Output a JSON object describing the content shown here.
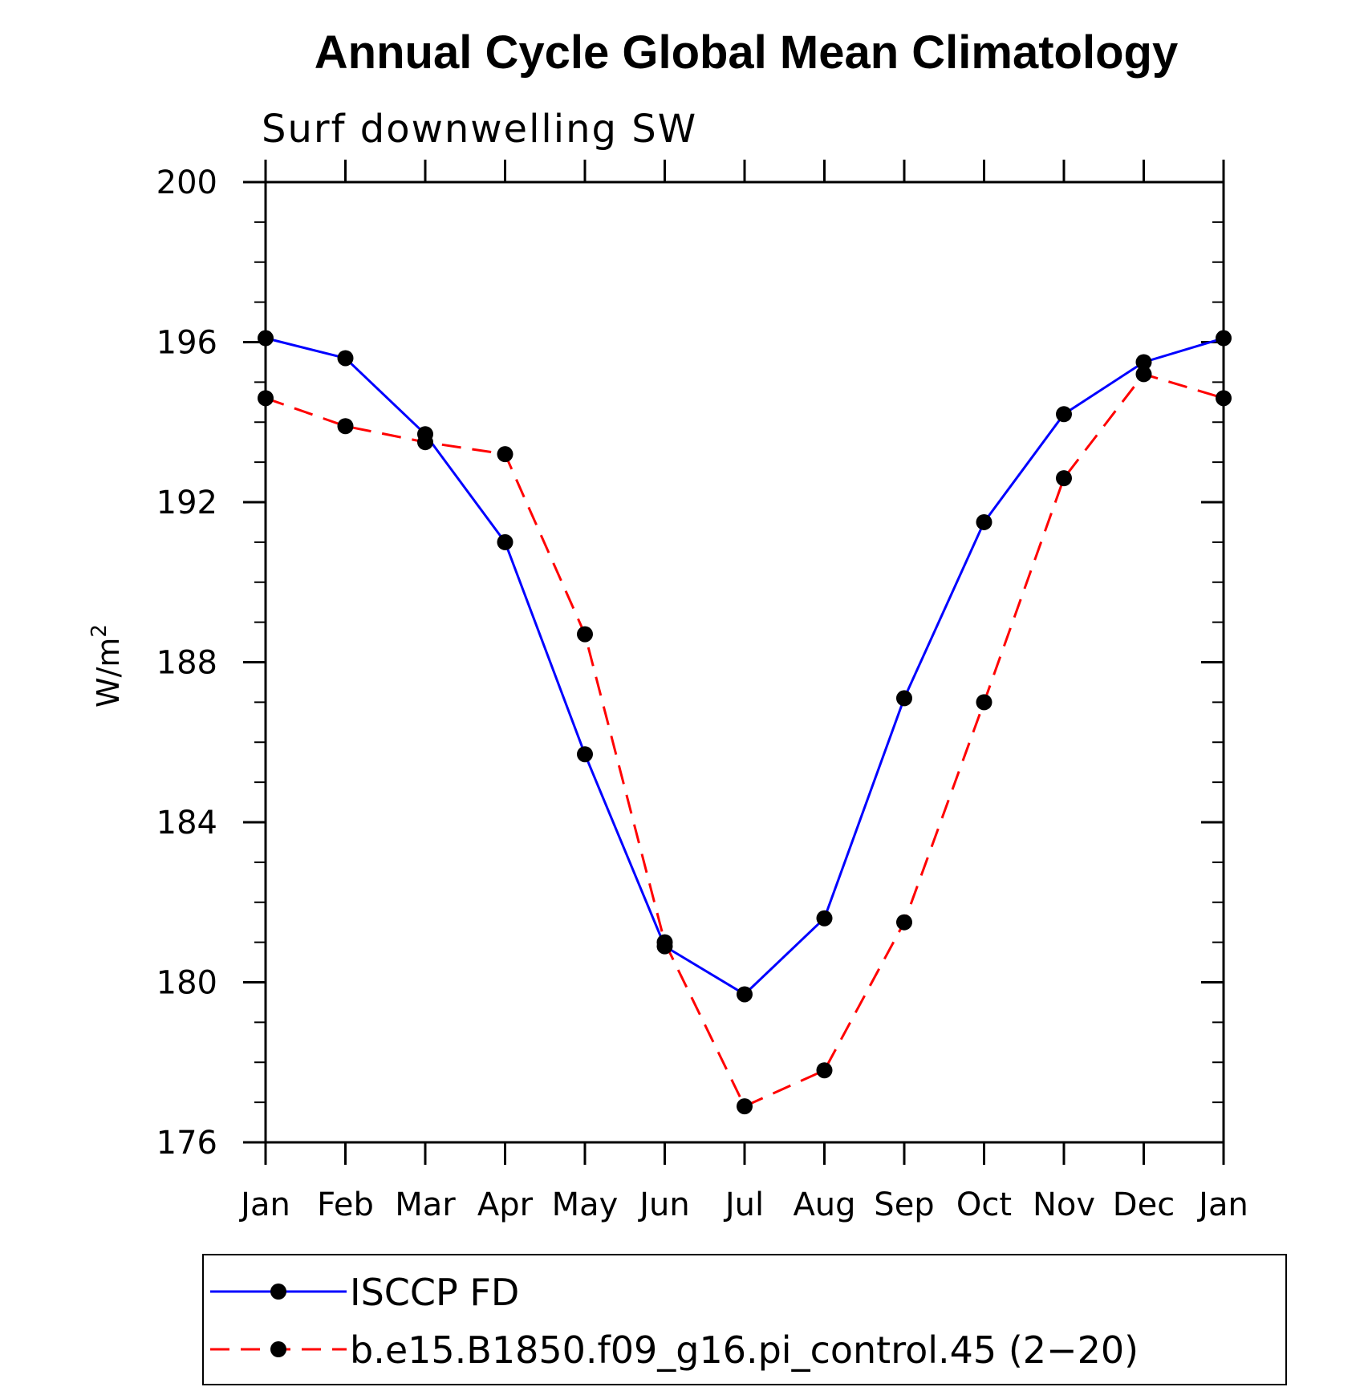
{
  "chart_data": {
    "type": "line",
    "title": "Annual Cycle Global Mean Climatology",
    "subtitle": "Surf downwelling SW",
    "ylabel": "W/m",
    "ylabel_superscript": "2",
    "x": [
      "Jan",
      "Feb",
      "Mar",
      "Apr",
      "May",
      "Jun",
      "Jul",
      "Aug",
      "Sep",
      "Oct",
      "Nov",
      "Dec",
      "Jan"
    ],
    "ylim": [
      176,
      200
    ],
    "yticks": [
      "176",
      "180",
      "184",
      "188",
      "192",
      "196",
      "200"
    ],
    "grid": false,
    "legend_position": "bottom",
    "series": [
      {
        "name": "ISCCP FD",
        "color": "#0000ff",
        "dash": "solid",
        "values": [
          196.1,
          195.6,
          193.7,
          191.0,
          185.7,
          180.9,
          179.7,
          181.6,
          187.1,
          191.5,
          194.2,
          195.5,
          196.1
        ]
      },
      {
        "name": "b.e15.B1850.f09_g16.pi_control.45 (2−20)",
        "color": "#ff0000",
        "dash": "dashed",
        "values": [
          194.6,
          193.9,
          193.5,
          193.2,
          188.7,
          181.0,
          176.9,
          177.8,
          181.5,
          187.0,
          192.6,
          195.2,
          194.6
        ]
      }
    ]
  }
}
